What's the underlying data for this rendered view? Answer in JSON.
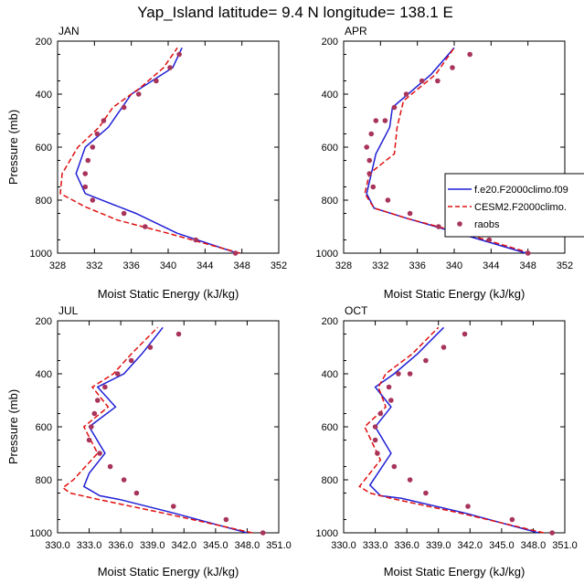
{
  "figure": {
    "title": "Yap_Island  latitude= 9.4 N longitude= 138.1 E",
    "ylabel": "Pressure (mb)",
    "xlabel": "Moist Static Energy (kJ/kg)"
  },
  "colors": {
    "model1": "#1f1fd6",
    "model2": "#e01010",
    "obs": "#a8345a"
  },
  "legend": {
    "entries": [
      "f.e20.F2000climo.f09",
      "CESM2.F2000climo.",
      "raobs"
    ]
  },
  "chart_data": [
    {
      "type": "line",
      "panel": "JAN",
      "xlim": [
        328,
        352
      ],
      "xticks": [
        328,
        332,
        336,
        340,
        344,
        348,
        352
      ],
      "xtick_labels": [
        "328",
        "332",
        "336",
        "340",
        "344",
        "348",
        "352"
      ],
      "ylim": [
        200,
        1000
      ],
      "yticks": [
        200,
        400,
        600,
        800,
        1000
      ],
      "series": [
        {
          "name": "f.e20.F2000climo.f09",
          "style": "solid",
          "x": [
            347.5,
            341.0,
            336.5,
            331.0,
            330.0,
            331.0,
            333.5,
            335.0,
            336.0,
            340.5,
            341.5
          ],
          "y": [
            1000,
            925,
            850,
            775,
            700,
            600,
            525,
            450,
            400,
            300,
            225
          ]
        },
        {
          "name": "CESM2.F2000climo.",
          "style": "dashed",
          "x": [
            347.8,
            340.0,
            334.5,
            331.0,
            328.3,
            328.5,
            330.2,
            332.5,
            334.0,
            337.0,
            339.5,
            341.0
          ],
          "y": [
            1000,
            925,
            875,
            825,
            775,
            700,
            600,
            525,
            450,
            375,
            300,
            225
          ]
        },
        {
          "name": "raobs",
          "style": "markers",
          "x": [
            347.3,
            343.0,
            337.5,
            335.2,
            331.8,
            331.0,
            331.0,
            331.3,
            331.8,
            332.3,
            333.0,
            335.2,
            336.8,
            338.7,
            340.2,
            341.2
          ],
          "y": [
            1000,
            950,
            900,
            850,
            800,
            750,
            700,
            650,
            600,
            550,
            500,
            450,
            400,
            350,
            300,
            250
          ]
        }
      ]
    },
    {
      "type": "line",
      "panel": "APR",
      "xlim": [
        328,
        352
      ],
      "xticks": [
        328,
        332,
        336,
        340,
        344,
        348,
        352
      ],
      "xtick_labels": [
        "328",
        "332",
        "336",
        "340",
        "344",
        "348",
        "352"
      ],
      "ylim": [
        200,
        1000
      ],
      "yticks": [
        200,
        400,
        600,
        800,
        1000
      ],
      "series": [
        {
          "name": "f.e20.F2000climo.f09",
          "style": "solid",
          "x": [
            347.8,
            340.5,
            335.0,
            331.3,
            330.5,
            331.0,
            331.5,
            333.0,
            333.3,
            337.5,
            340.0
          ],
          "y": [
            1000,
            925,
            870,
            830,
            775,
            700,
            625,
            525,
            450,
            325,
            225
          ]
        },
        {
          "name": "CESM2.F2000climo.",
          "style": "dashed",
          "x": [
            348.3,
            341.0,
            335.0,
            331.3,
            330.3,
            330.8,
            333.5,
            333.8,
            334.5,
            338.0,
            340.0
          ],
          "y": [
            1000,
            925,
            870,
            830,
            775,
            700,
            625,
            525,
            425,
            325,
            225
          ]
        },
        {
          "name": "raobs",
          "style": "markers",
          "x": [
            348.0,
            343.8,
            338.3,
            335.2,
            332.8,
            331.2,
            330.8,
            330.8,
            330.5,
            331.0,
            331.5,
            332.5,
            333.5,
            334.8,
            336.5,
            338.2,
            339.8,
            341.7
          ],
          "y": [
            1000,
            950,
            900,
            850,
            800,
            750,
            700,
            650,
            600,
            550,
            500,
            500,
            450,
            400,
            350,
            350,
            300,
            250
          ]
        }
      ]
    },
    {
      "type": "line",
      "panel": "JUL",
      "xlim": [
        330.0,
        351.0
      ],
      "xticks": [
        330,
        333,
        336,
        339,
        342,
        345,
        348,
        351
      ],
      "xtick_labels": [
        "330.0",
        "333.0",
        "336.0",
        "339.0",
        "342.0",
        "345.0",
        "348.0",
        "351.0"
      ],
      "ylim": [
        200,
        1000
      ],
      "yticks": [
        200,
        400,
        600,
        800,
        1000
      ],
      "series": [
        {
          "name": "f.e20.F2000climo.f09",
          "style": "solid",
          "x": [
            348.0,
            341.0,
            336.0,
            334.0,
            332.5,
            333.0,
            334.5,
            333.0,
            335.5,
            333.8,
            336.3,
            338.0,
            340.0
          ],
          "y": [
            1000,
            925,
            875,
            860,
            825,
            775,
            700,
            600,
            525,
            450,
            400,
            325,
            225
          ]
        },
        {
          "name": "CESM2.F2000climo.",
          "style": "dashed",
          "x": [
            348.5,
            340.0,
            334.0,
            331.2,
            330.5,
            331.5,
            333.8,
            332.5,
            334.8,
            333.3,
            335.3,
            337.0,
            339.5
          ],
          "y": [
            1000,
            925,
            875,
            850,
            830,
            800,
            700,
            600,
            525,
            450,
            400,
            325,
            225
          ]
        },
        {
          "name": "raobs",
          "style": "markers",
          "x": [
            349.5,
            346.0,
            341.0,
            337.5,
            336.3,
            335.0,
            334.0,
            333.0,
            333.2,
            333.5,
            333.8,
            334.5,
            335.7,
            337.0,
            338.8,
            341.5
          ],
          "y": [
            1000,
            950,
            900,
            850,
            800,
            750,
            700,
            650,
            600,
            550,
            500,
            450,
            400,
            350,
            300,
            250
          ]
        }
      ]
    },
    {
      "type": "line",
      "panel": "OCT",
      "xlim": [
        330.0,
        351.0
      ],
      "xticks": [
        330,
        333,
        336,
        339,
        342,
        345,
        348,
        351
      ],
      "xtick_labels": [
        "330.0",
        "333.0",
        "336.0",
        "339.0",
        "342.0",
        "345.0",
        "348.0",
        "351.0"
      ],
      "ylim": [
        200,
        1000
      ],
      "yticks": [
        200,
        400,
        600,
        800,
        1000
      ],
      "series": [
        {
          "name": "f.e20.F2000climo.f09",
          "style": "solid",
          "x": [
            348.5,
            341.5,
            335.5,
            333.5,
            332.5,
            334.5,
            333.0,
            334.5,
            333.0,
            334.8,
            337.0,
            339.5
          ],
          "y": [
            1000,
            925,
            870,
            860,
            820,
            700,
            600,
            525,
            450,
            400,
            325,
            225
          ]
        },
        {
          "name": "CESM2.F2000climo.",
          "style": "dashed",
          "x": [
            349.0,
            341.0,
            334.5,
            332.5,
            331.5,
            333.5,
            332.0,
            334.0,
            333.3,
            334.0,
            336.5,
            339.0
          ],
          "y": [
            1000,
            925,
            870,
            850,
            825,
            725,
            600,
            525,
            450,
            400,
            325,
            225
          ]
        },
        {
          "name": "raobs",
          "style": "markers",
          "x": [
            349.8,
            346.0,
            341.8,
            337.8,
            336.3,
            334.8,
            333.2,
            333.0,
            333.0,
            333.5,
            334.5,
            334.3,
            335.2,
            336.3,
            337.8,
            339.5,
            341.5
          ],
          "y": [
            1000,
            950,
            900,
            850,
            800,
            750,
            700,
            650,
            600,
            550,
            500,
            450,
            400,
            400,
            350,
            300,
            250
          ]
        }
      ]
    }
  ]
}
